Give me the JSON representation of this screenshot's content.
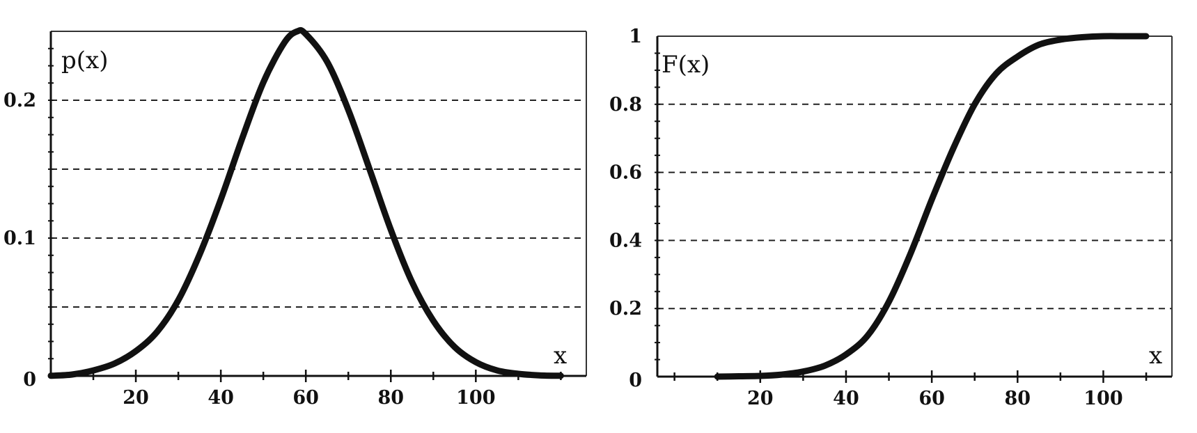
{
  "chart_data": [
    {
      "type": "line",
      "title": "",
      "ylabel": "p(x)",
      "xlabel": "x",
      "xlim": [
        0,
        126
      ],
      "ylim": [
        0,
        0.25
      ],
      "grid": "horizontal dashed",
      "x_ticks": [
        20,
        40,
        60,
        80,
        100
      ],
      "y_ticks": [
        0,
        0.1,
        0.2
      ],
      "y_tick_labels": [
        "0",
        "0.1",
        "0.2"
      ],
      "y_gridlines": [
        0.05,
        0.1,
        0.15,
        0.2
      ],
      "series": [
        {
          "color": "#111111",
          "x": [
            0,
            5,
            10,
            15,
            20,
            25,
            30,
            35,
            40,
            45,
            50,
            55,
            58,
            60,
            65,
            70,
            75,
            80,
            85,
            90,
            95,
            100,
            105,
            110,
            115,
            120
          ],
          "y": [
            0.0001,
            0.001,
            0.004,
            0.009,
            0.018,
            0.032,
            0.055,
            0.088,
            0.128,
            0.172,
            0.213,
            0.242,
            0.25,
            0.248,
            0.228,
            0.193,
            0.15,
            0.106,
            0.068,
            0.04,
            0.021,
            0.01,
            0.004,
            0.0015,
            0.0004,
            0.0001
          ]
        }
      ]
    },
    {
      "type": "line",
      "title": "",
      "ylabel": "F(x)",
      "xlabel": "x",
      "xlim": [
        -4,
        116
      ],
      "ylim": [
        0,
        1
      ],
      "grid": "horizontal dashed",
      "x_ticks": [
        20,
        40,
        60,
        80,
        100
      ],
      "y_ticks": [
        0,
        0.2,
        0.4,
        0.6,
        0.8,
        1
      ],
      "y_tick_labels": [
        "0",
        "0.2",
        "0.4",
        "0.6",
        "0.8",
        "1"
      ],
      "y_gridlines": [
        0.2,
        0.4,
        0.6,
        0.8
      ],
      "series": [
        {
          "color": "#111111",
          "x": [
            10,
            15,
            20,
            25,
            30,
            35,
            40,
            45,
            50,
            55,
            60,
            65,
            70,
            75,
            80,
            85,
            90,
            95,
            100,
            105,
            110
          ],
          "y": [
            0.0,
            0.001,
            0.002,
            0.006,
            0.015,
            0.032,
            0.065,
            0.12,
            0.22,
            0.36,
            0.52,
            0.67,
            0.8,
            0.89,
            0.94,
            0.975,
            0.99,
            0.997,
            1.0,
            1.0,
            1.0
          ]
        }
      ]
    }
  ]
}
